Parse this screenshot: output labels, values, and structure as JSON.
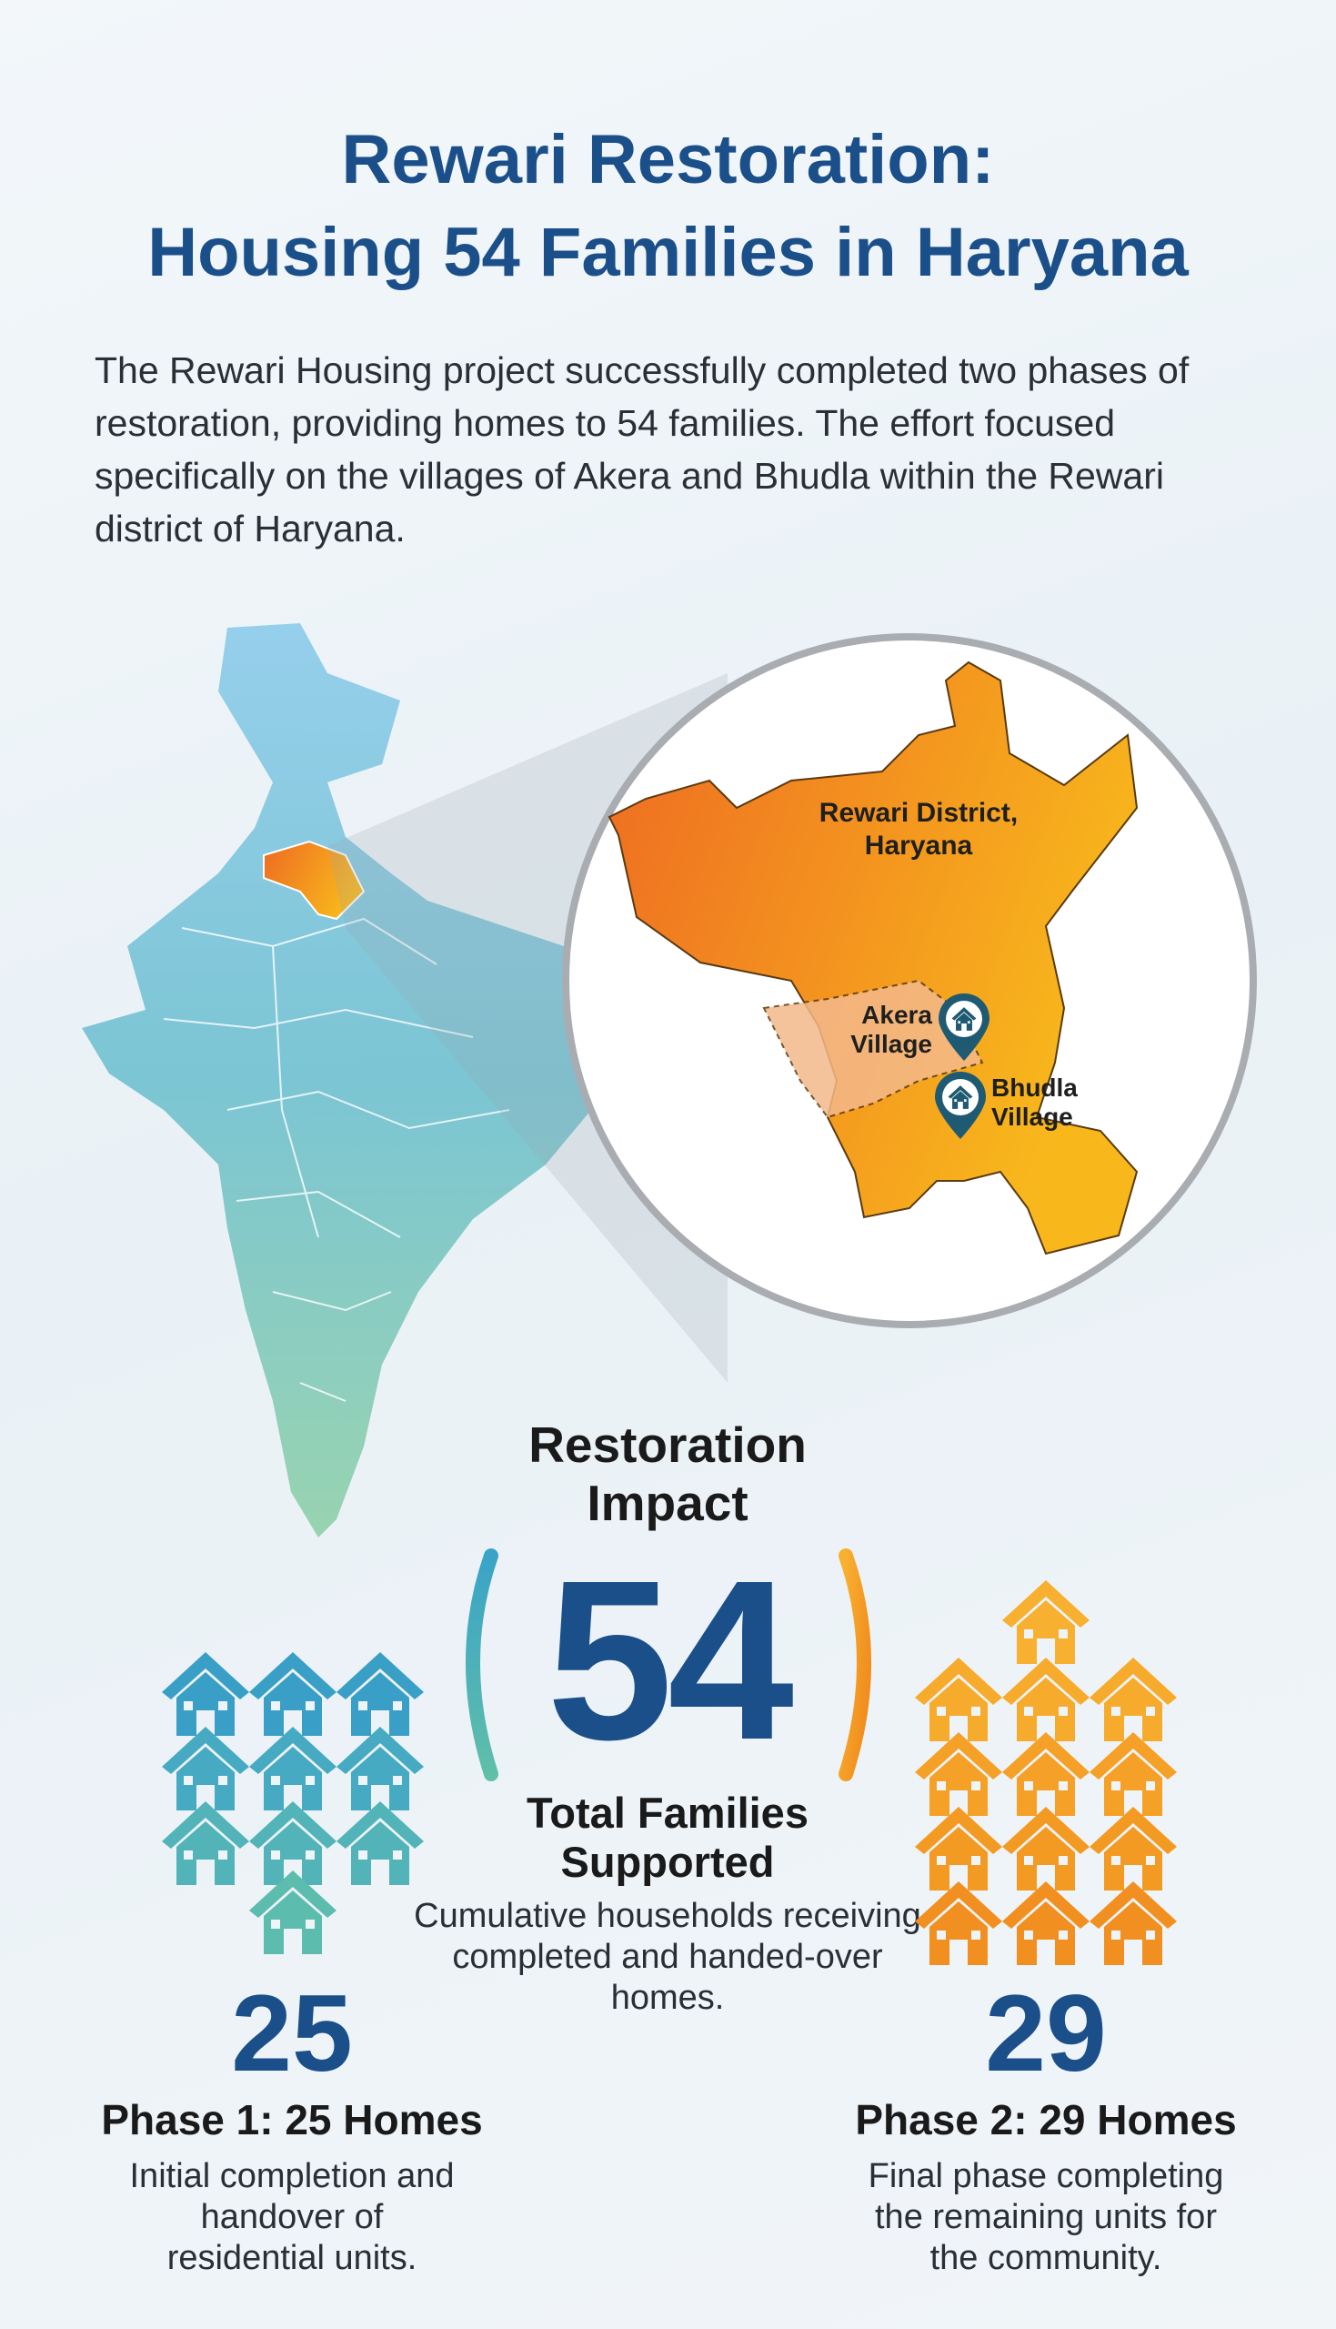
{
  "title": {
    "line1": "Rewari Restoration:",
    "line2": "Housing 54 Families in Haryana"
  },
  "intro": "The Rewari Housing project successfully completed two phases of restoration, providing homes to 54 families. The effort focused specifically on the villages of Akera and Bhudla within the Rewari district of Haryana.",
  "map": {
    "district_label_line1": "Rewari District,",
    "district_label_line2": "Haryana",
    "villages": [
      {
        "line1": "Akera",
        "line2": "Village",
        "icon": "home-pin-icon"
      },
      {
        "line1": "Bhudla",
        "line2": "Village",
        "icon": "home-pin-icon"
      }
    ]
  },
  "impact": {
    "title_line1": "Restoration",
    "title_line2": "Impact",
    "total": "54",
    "total_label_line1": "Total Families",
    "total_label_line2": "Supported",
    "description": "Cumulative households receiving completed and handed-over homes."
  },
  "phases": [
    {
      "count": "25",
      "title": "Phase 1: 25 Homes",
      "description": "Initial completion and handover of residential units.",
      "color": "#3fa7c4",
      "icon": "house-icon"
    },
    {
      "count": "29",
      "title": "Phase 2: 29 Homes",
      "description": "Final phase completing the remaining units for the community.",
      "color": "#f39a1e",
      "icon": "house-icon"
    }
  ],
  "colors": {
    "title": "#1b4f8a",
    "teal": "#3fa7c4",
    "orange": "#f39a1e",
    "pin": "#1f5a73"
  }
}
